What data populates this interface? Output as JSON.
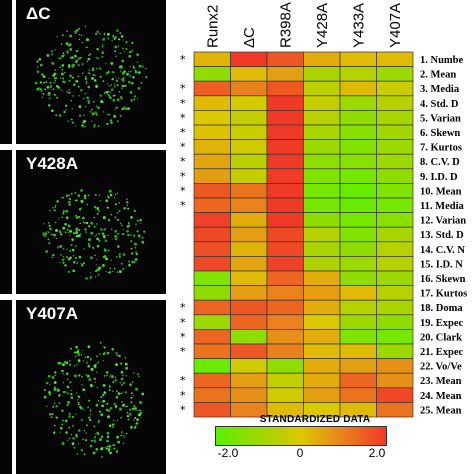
{
  "panels": [
    {
      "label": "ΔC"
    },
    {
      "label": "Y428A"
    },
    {
      "label": "Y407A"
    }
  ],
  "chart_data": {
    "type": "heatmap",
    "columns": [
      "Runx2",
      "ΔC",
      "R398A",
      "Y428A",
      "Y433A",
      "Y407A"
    ],
    "rows": [
      {
        "label": "1.  Numbe",
        "star": true,
        "values": [
          0.3,
          2.0,
          1.6,
          0.4,
          0.2,
          0.2
        ]
      },
      {
        "label": "2.  Mean",
        "star": false,
        "values": [
          -1.2,
          0.2,
          0.6,
          -0.8,
          -0.6,
          -1.0
        ]
      },
      {
        "label": "3.  Media",
        "star": true,
        "values": [
          1.5,
          1.0,
          1.6,
          -0.5,
          0.2,
          -0.3
        ]
      },
      {
        "label": "4.  Std. D",
        "star": true,
        "values": [
          0.2,
          -0.1,
          2.0,
          -0.4,
          -1.0,
          -0.6
        ]
      },
      {
        "label": "5.  Varian",
        "star": true,
        "values": [
          0.0,
          -0.4,
          2.0,
          -0.6,
          -1.2,
          -0.8
        ]
      },
      {
        "label": "6.  Skewn",
        "star": true,
        "values": [
          0.1,
          -0.3,
          2.0,
          -0.8,
          -1.3,
          -0.9
        ]
      },
      {
        "label": "7.  Kurtos",
        "star": true,
        "values": [
          0.3,
          -0.2,
          2.0,
          -1.0,
          -1.4,
          -1.0
        ]
      },
      {
        "label": "8.  C.V. D",
        "star": true,
        "values": [
          0.5,
          -0.5,
          2.0,
          -1.2,
          -1.3,
          -1.0
        ]
      },
      {
        "label": "9.  I.D. D",
        "star": true,
        "values": [
          0.6,
          -0.4,
          2.0,
          -1.4,
          -1.6,
          -1.2
        ]
      },
      {
        "label": "10.  Mean",
        "star": true,
        "values": [
          1.6,
          1.2,
          2.0,
          -1.6,
          -1.8,
          -1.4
        ]
      },
      {
        "label": "11.  Media",
        "star": true,
        "values": [
          1.4,
          1.0,
          2.0,
          -1.6,
          -1.8,
          -1.6
        ]
      },
      {
        "label": "12.  Varian",
        "star": false,
        "values": [
          1.9,
          0.4,
          2.0,
          -1.2,
          -1.6,
          -1.3
        ]
      },
      {
        "label": "13.  Std. D",
        "star": false,
        "values": [
          1.8,
          0.6,
          1.8,
          -0.6,
          -1.4,
          -0.8
        ]
      },
      {
        "label": "14.  C.V. N",
        "star": false,
        "values": [
          1.7,
          0.3,
          1.8,
          -0.8,
          -1.2,
          -0.6
        ]
      },
      {
        "label": "15.  I.D. N",
        "star": false,
        "values": [
          1.8,
          0.5,
          1.9,
          -0.7,
          -1.0,
          -0.6
        ]
      },
      {
        "label": "16.  Skewn",
        "star": false,
        "values": [
          -1.4,
          0.2,
          1.4,
          0.4,
          -1.2,
          -1.0
        ]
      },
      {
        "label": "17.  Kurtos",
        "star": false,
        "values": [
          -1.2,
          0.6,
          1.0,
          0.6,
          0.2,
          -0.6
        ]
      },
      {
        "label": "18.  Doma",
        "star": true,
        "values": [
          1.4,
          1.6,
          1.4,
          0.4,
          -0.6,
          -0.8
        ]
      },
      {
        "label": "19.  Expec",
        "star": true,
        "values": [
          -1.0,
          1.4,
          1.0,
          0.0,
          -1.0,
          -1.2
        ]
      },
      {
        "label": "20.  Clark",
        "star": true,
        "values": [
          1.4,
          -1.2,
          0.8,
          0.4,
          -1.4,
          -1.6
        ]
      },
      {
        "label": "21.  Expec",
        "star": true,
        "values": [
          1.2,
          1.6,
          1.0,
          0.2,
          0.2,
          -1.0
        ]
      },
      {
        "label": "22.  Vo/Ve",
        "star": false,
        "values": [
          -1.8,
          -0.2,
          -1.2,
          0.4,
          0.6,
          0.8
        ]
      },
      {
        "label": "23.  Mean",
        "star": true,
        "values": [
          1.4,
          0.6,
          -0.4,
          0.4,
          1.4,
          0.8
        ]
      },
      {
        "label": "24.  Mean",
        "star": true,
        "values": [
          1.2,
          0.8,
          -0.2,
          0.6,
          1.2,
          1.8
        ]
      },
      {
        "label": "25.  Mean",
        "star": true,
        "values": [
          1.6,
          1.0,
          0.2,
          0.0,
          0.2,
          1.2
        ]
      }
    ],
    "scale": {
      "title": "STANDARDIZED DATA",
      "ticks": [
        "-2.0",
        "0",
        "2.0"
      ],
      "range": [
        -2,
        2
      ]
    }
  }
}
